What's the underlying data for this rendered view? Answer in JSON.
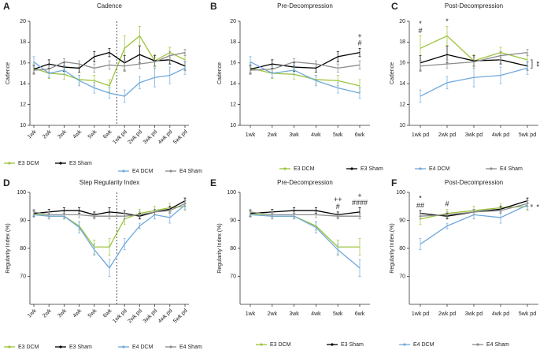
{
  "chart_data": [
    {
      "type": "line",
      "panel": "A",
      "title": "Cadence",
      "y_label": "Cadence",
      "categories": [
        "1wk",
        "2wk",
        "3wk",
        "4wk",
        "5wk",
        "6wk",
        "1wk pd",
        "2wk pd",
        "3wk pd",
        "4wk pd",
        "5wk pd"
      ],
      "ylim": [
        10,
        20
      ],
      "yticks": [
        10,
        12,
        14,
        16,
        18,
        20
      ],
      "divider_after": "6wk",
      "legend": true,
      "grid": false,
      "series": [
        {
          "name": "E3 DCM",
          "color": "#9cc43a",
          "values": [
            15.5,
            15.0,
            14.9,
            14.4,
            14.3,
            13.8,
            17.4,
            18.6,
            16.2,
            17.0,
            16.3
          ],
          "errors": [
            0.5,
            0.5,
            0.5,
            0.4,
            0.5,
            0.6,
            1.2,
            0.9,
            0.6,
            0.5,
            0.6
          ]
        },
        {
          "name": "E3 Sham",
          "color": "#000000",
          "values": [
            15.4,
            15.9,
            15.6,
            15.5,
            16.6,
            17.0,
            16.0,
            16.8,
            16.2,
            16.3,
            15.7
          ],
          "errors": [
            0.4,
            0.4,
            0.4,
            0.4,
            0.5,
            0.4,
            0.7,
            0.8,
            0.5,
            0.4,
            0.4
          ]
        },
        {
          "name": "E4 DCM",
          "color": "#6fa8dc",
          "values": [
            16.1,
            15.0,
            15.3,
            14.3,
            13.6,
            13.1,
            12.8,
            14.1,
            14.6,
            14.8,
            15.5
          ],
          "errors": [
            0.5,
            0.4,
            0.4,
            0.5,
            0.5,
            0.5,
            0.6,
            0.6,
            0.9,
            0.8,
            0.6
          ]
        },
        {
          "name": "E4 Sham",
          "color": "#8c8c8c",
          "values": [
            15.3,
            15.4,
            16.1,
            15.9,
            15.5,
            15.8,
            15.7,
            15.9,
            16.1,
            16.7,
            17.0
          ],
          "errors": [
            0.4,
            0.3,
            0.3,
            0.3,
            0.4,
            0.4,
            0.5,
            0.4,
            0.4,
            0.4,
            0.3
          ]
        }
      ]
    },
    {
      "type": "line",
      "panel": "B",
      "title": "Pre-Decompression",
      "y_label": "Cadence",
      "categories": [
        "1wk",
        "2wk",
        "3wk",
        "4wk",
        "5wk",
        "6wk"
      ],
      "ylim": [
        10,
        20
      ],
      "yticks": [
        10,
        12,
        14,
        16,
        18,
        20
      ],
      "legend": true,
      "grid": false,
      "annotations": [
        {
          "category": "6wk",
          "texts": [
            "#",
            "+"
          ]
        }
      ],
      "series": [
        {
          "name": "E3 DCM",
          "color": "#9cc43a",
          "values": [
            15.5,
            15.0,
            14.9,
            14.4,
            14.3,
            13.8
          ],
          "errors": [
            0.5,
            0.5,
            0.5,
            0.4,
            0.5,
            0.6
          ]
        },
        {
          "name": "E3 Sham",
          "color": "#000000",
          "values": [
            15.4,
            15.9,
            15.6,
            15.5,
            16.6,
            17.0
          ],
          "errors": [
            0.4,
            0.4,
            0.4,
            0.4,
            0.5,
            0.4
          ]
        },
        {
          "name": "E4 DCM",
          "color": "#6fa8dc",
          "values": [
            16.1,
            15.0,
            15.3,
            14.3,
            13.6,
            13.1
          ],
          "errors": [
            0.5,
            0.4,
            0.4,
            0.5,
            0.5,
            0.5
          ]
        },
        {
          "name": "E4 Sham",
          "color": "#8c8c8c",
          "values": [
            15.3,
            15.4,
            16.1,
            15.9,
            15.5,
            15.8
          ],
          "errors": [
            0.4,
            0.3,
            0.3,
            0.3,
            0.4,
            0.4
          ]
        }
      ]
    },
    {
      "type": "line",
      "panel": "C",
      "title": "Post-Decompression",
      "y_label": "Cadence",
      "categories": [
        "1wk pd",
        "2wk pd",
        "3wk pd",
        "4wk pd",
        "5wk pd"
      ],
      "ylim": [
        10,
        20
      ],
      "yticks": [
        10,
        12,
        14,
        16,
        18,
        20
      ],
      "legend": false,
      "grid": false,
      "annotations": [
        {
          "category": "1wk pd",
          "texts": [
            "#",
            "*"
          ]
        },
        {
          "category": "2wk pd",
          "texts": [
            "*"
          ]
        }
      ],
      "bracket_label": "**",
      "series": [
        {
          "name": "E3 DCM",
          "color": "#9cc43a",
          "values": [
            17.4,
            18.6,
            16.2,
            17.0,
            16.3
          ],
          "errors": [
            1.2,
            0.9,
            0.6,
            0.5,
            0.6
          ]
        },
        {
          "name": "E3 Sham",
          "color": "#000000",
          "values": [
            16.0,
            16.8,
            16.2,
            16.3,
            15.7
          ],
          "errors": [
            0.7,
            0.8,
            0.5,
            0.4,
            0.4
          ]
        },
        {
          "name": "E4 DCM",
          "color": "#6fa8dc",
          "values": [
            12.8,
            14.1,
            14.6,
            14.8,
            15.5
          ],
          "errors": [
            0.6,
            0.6,
            0.9,
            0.8,
            0.6
          ]
        },
        {
          "name": "E4 Sham",
          "color": "#8c8c8c",
          "values": [
            15.7,
            15.9,
            16.1,
            16.7,
            17.0
          ],
          "errors": [
            0.5,
            0.4,
            0.4,
            0.4,
            0.3
          ]
        }
      ]
    },
    {
      "type": "line",
      "panel": "D",
      "title": "Step Regularity Index",
      "y_label": "Regularity Index (%)",
      "categories": [
        "1wk",
        "2wk",
        "3wk",
        "4wk",
        "5wk",
        "6wk",
        "1wk pd",
        "2wk pd",
        "3wk pd",
        "4wk pd",
        "5wk pd"
      ],
      "ylim": [
        60,
        100
      ],
      "yticks": [
        70,
        80,
        90,
        100
      ],
      "divider_after": "6wk",
      "legend": true,
      "grid": false,
      "series": [
        {
          "name": "E3 DCM",
          "color": "#9cc43a",
          "values": [
            92.5,
            91.5,
            91.5,
            88,
            80.5,
            80.5,
            90.5,
            92.5,
            93.5,
            94.5,
            95
          ],
          "errors": [
            1,
            1,
            1,
            1.5,
            2.5,
            3,
            2,
            1.5,
            1.5,
            1.5,
            1.5
          ]
        },
        {
          "name": "E3 Sham",
          "color": "#000000",
          "values": [
            92.5,
            93,
            93.5,
            93.5,
            92,
            93,
            92.5,
            91.5,
            93,
            94,
            97
          ],
          "errors": [
            1,
            1,
            1,
            1,
            1,
            1.5,
            1,
            1,
            1,
            1,
            1
          ]
        },
        {
          "name": "E4 DCM",
          "color": "#6fa8dc",
          "values": [
            92,
            91.5,
            91.5,
            87.5,
            79.5,
            73,
            81.5,
            88,
            92,
            91,
            95.5
          ],
          "errors": [
            1,
            1,
            1,
            2,
            2,
            3,
            2,
            1,
            1.5,
            2,
            1.5
          ]
        },
        {
          "name": "E4 Sham",
          "color": "#8c8c8c",
          "values": [
            93,
            92,
            92,
            92,
            91.5,
            91.5,
            91.5,
            92,
            93,
            93.5,
            96
          ],
          "errors": [
            1,
            1,
            1,
            1,
            1,
            1,
            1,
            1,
            1,
            1,
            1
          ]
        }
      ]
    },
    {
      "type": "line",
      "panel": "E",
      "title": "Pre-Decompression",
      "y_label": "Regularity Index (%)",
      "categories": [
        "1wk",
        "2wk",
        "3wk",
        "4wk",
        "5wk",
        "6wk"
      ],
      "ylim": [
        60,
        100
      ],
      "yticks": [
        70,
        80,
        90,
        100
      ],
      "legend": true,
      "grid": false,
      "annotations": [
        {
          "category": "5wk",
          "texts": [
            "#",
            "++"
          ]
        },
        {
          "category": "6wk",
          "texts": [
            "####",
            "+"
          ]
        }
      ],
      "series": [
        {
          "name": "E3 DCM",
          "color": "#9cc43a",
          "values": [
            92.5,
            91.5,
            91.5,
            88,
            80.5,
            80.5
          ],
          "errors": [
            1,
            1,
            1,
            1.5,
            2.5,
            3
          ]
        },
        {
          "name": "E3 Sham",
          "color": "#000000",
          "values": [
            92.5,
            93,
            93.5,
            93.5,
            92,
            93
          ],
          "errors": [
            1,
            1,
            1,
            1,
            1,
            1.5
          ]
        },
        {
          "name": "E4 DCM",
          "color": "#6fa8dc",
          "values": [
            92,
            91.5,
            91.5,
            87.5,
            79.5,
            73
          ],
          "errors": [
            1,
            1,
            1,
            2,
            2,
            3
          ]
        },
        {
          "name": "E4 Sham",
          "color": "#8c8c8c",
          "values": [
            93,
            92,
            92,
            92,
            91.5,
            91.5
          ],
          "errors": [
            1,
            1,
            1,
            1,
            1,
            1
          ]
        }
      ]
    },
    {
      "type": "line",
      "panel": "F",
      "title": "Post-Decompression",
      "y_label": "Regularity Index (%)",
      "categories": [
        "1wk pd",
        "2wk pd",
        "3wk pd",
        "4wk pd",
        "5wk pd"
      ],
      "ylim": [
        60,
        100
      ],
      "yticks": [
        70,
        80,
        90,
        100
      ],
      "legend": false,
      "grid": false,
      "annotations": [
        {
          "category": "1wk pd",
          "texts": [
            "##",
            "*"
          ]
        },
        {
          "category": "2wk pd",
          "texts": [
            "#"
          ]
        }
      ],
      "bracket_label": "*",
      "series": [
        {
          "name": "E3 DCM",
          "color": "#9cc43a",
          "values": [
            90.5,
            92.5,
            93.5,
            94.5,
            95
          ],
          "errors": [
            2,
            1.5,
            1.5,
            1.5,
            1.5
          ]
        },
        {
          "name": "E3 Sham",
          "color": "#000000",
          "values": [
            92.5,
            91.5,
            93,
            94,
            97
          ],
          "errors": [
            1,
            1,
            1,
            1,
            1
          ]
        },
        {
          "name": "E4 DCM",
          "color": "#6fa8dc",
          "values": [
            81.5,
            88,
            92,
            91,
            95.5
          ],
          "errors": [
            2,
            1,
            1.5,
            2,
            1.5
          ]
        },
        {
          "name": "E4 Sham",
          "color": "#8c8c8c",
          "values": [
            91.5,
            92,
            93,
            93.5,
            96
          ],
          "errors": [
            1,
            1,
            1,
            1,
            1
          ]
        }
      ]
    }
  ]
}
